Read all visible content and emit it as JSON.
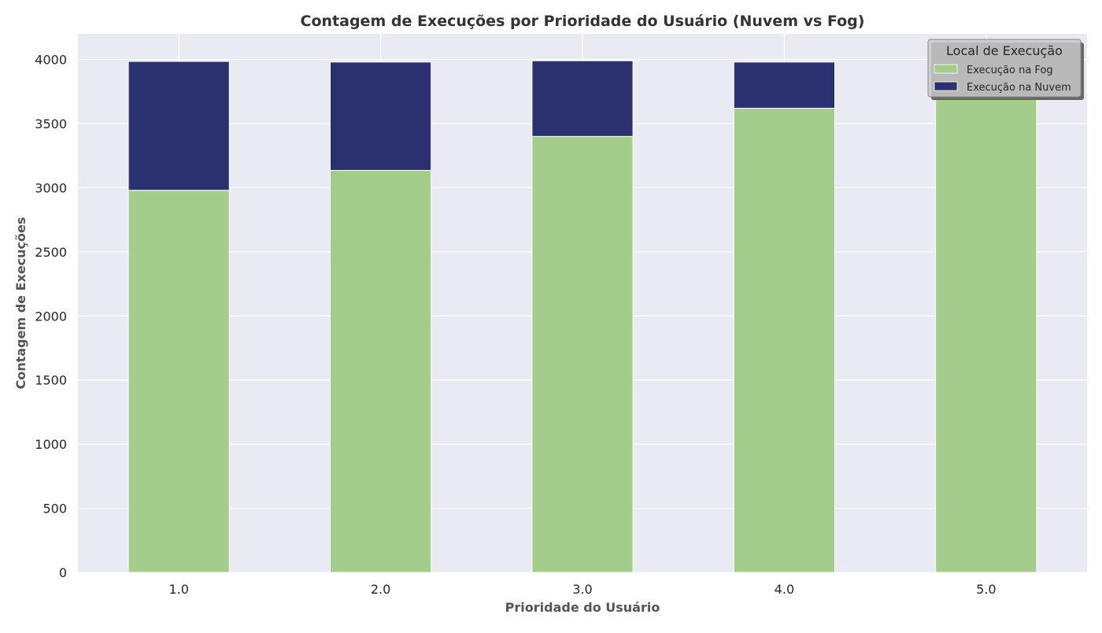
{
  "chart_data": {
    "type": "bar",
    "stacked": true,
    "title": "Contagem de Execuções por Prioridade do Usuário (Nuvem vs Fog)",
    "xlabel": "Prioridade do Usuário",
    "ylabel": "Contagem de Execuções",
    "categories": [
      "1.0",
      "2.0",
      "3.0",
      "4.0",
      "5.0"
    ],
    "ylim": [
      0,
      4200
    ],
    "yticks": [
      0,
      500,
      1000,
      1500,
      2000,
      2500,
      3000,
      3500,
      4000
    ],
    "grid": true,
    "legend": {
      "title": "Local de Execução",
      "placement": "top-right"
    },
    "series": [
      {
        "name": "Execução na Fog",
        "color": "#a3cc8d",
        "values": [
          2980,
          3135,
          3400,
          3620,
          3830
        ]
      },
      {
        "name": "Execução na Nuvem",
        "color": "#2b306e",
        "values": [
          1005,
          845,
          590,
          360,
          160
        ]
      }
    ],
    "colors": {
      "plot_background": "#eaeaf2",
      "grid": "#ffffff"
    }
  }
}
